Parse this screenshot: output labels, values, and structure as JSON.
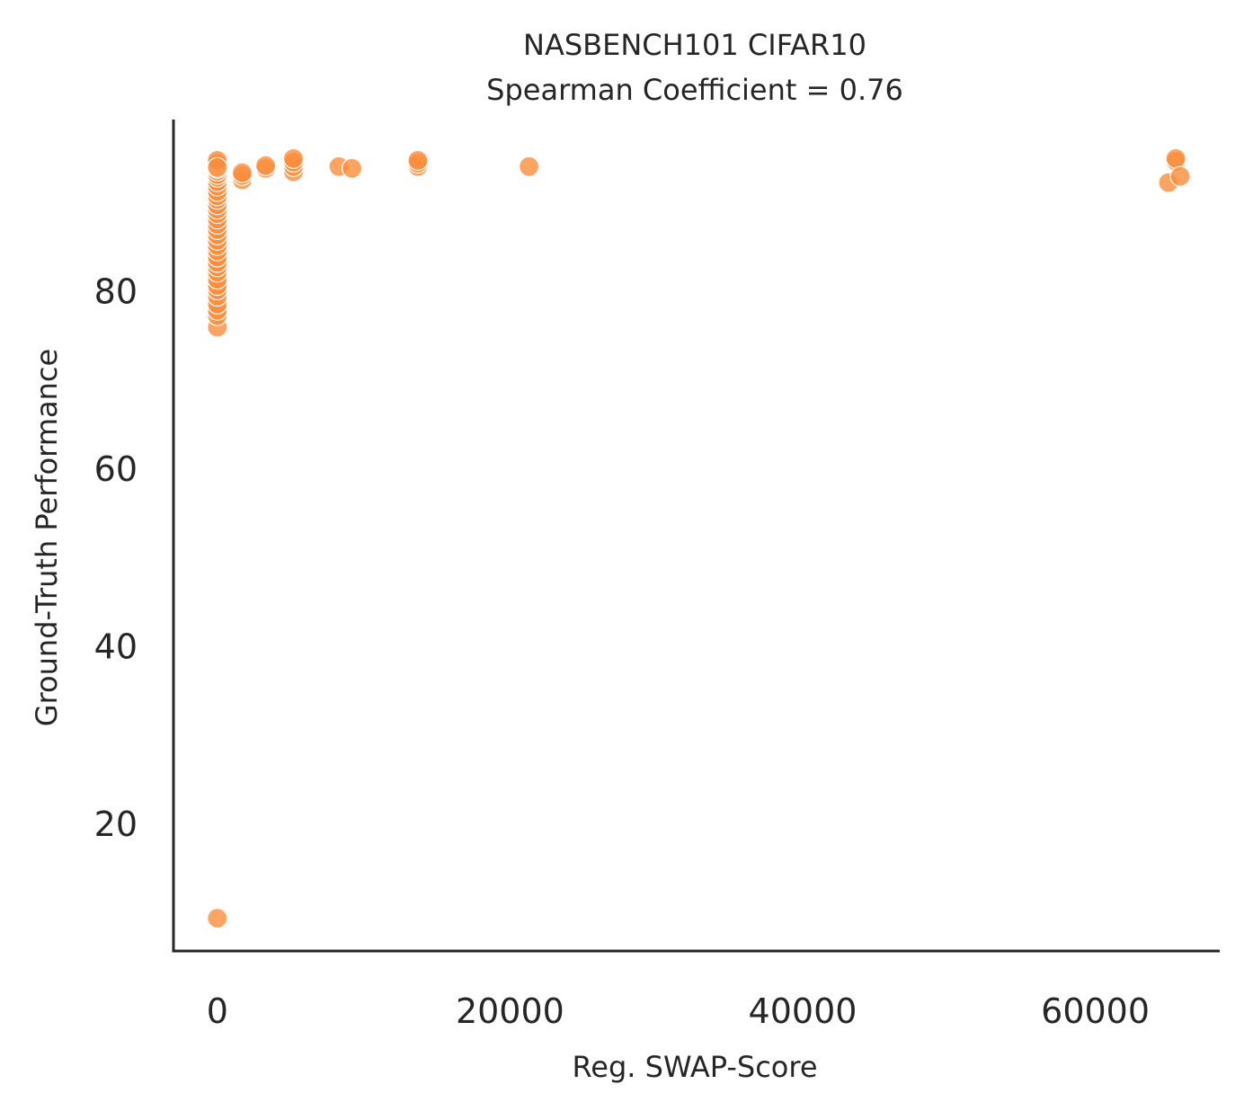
{
  "chart_data": {
    "type": "scatter",
    "title": "NASBENCH101 CIFAR10",
    "subtitle": "Spearman Coefficient = 0.76",
    "xlabel": "Reg. SWAP-Score",
    "ylabel": "Ground-Truth Performance",
    "xlim": [
      -3000,
      68500
    ],
    "ylim": [
      5.6,
      99.3
    ],
    "xticks": [
      0,
      20000,
      40000,
      60000
    ],
    "yticks": [
      20,
      40,
      60,
      80
    ],
    "grid": false,
    "marker_color": "#fd8d3c",
    "marker_opacity": 0.8,
    "x": [
      0,
      0,
      0,
      0,
      0,
      0,
      0,
      0,
      0,
      0,
      0,
      0,
      0,
      0,
      0,
      0,
      0,
      0,
      0,
      0,
      0,
      0,
      0,
      0,
      0,
      0,
      0,
      0,
      0,
      0,
      0,
      0,
      0,
      0,
      0,
      0,
      1700,
      1700,
      1700,
      3300,
      3300,
      5200,
      5200,
      5200,
      5200,
      8300,
      9200,
      13700,
      13700,
      13700,
      21300,
      65000,
      65500,
      65500,
      65800
    ],
    "y": [
      9.3,
      75.9,
      77.2,
      77.8,
      78.5,
      79.4,
      80.1,
      80.6,
      81.3,
      82.1,
      82.7,
      83.2,
      83.8,
      84.5,
      85.1,
      85.7,
      86.3,
      86.9,
      87.5,
      88.1,
      88.7,
      89.2,
      89.7,
      90.3,
      90.7,
      91.2,
      91.8,
      92.3,
      92.8,
      93.1,
      93.5,
      93.8,
      94.1,
      94.4,
      94.7,
      93.9,
      92.5,
      93.0,
      93.3,
      93.8,
      94.1,
      93.4,
      94.0,
      94.5,
      94.9,
      94.0,
      93.8,
      94.0,
      94.4,
      94.7,
      94.0,
      92.2,
      94.6,
      94.9,
      92.9
    ]
  }
}
